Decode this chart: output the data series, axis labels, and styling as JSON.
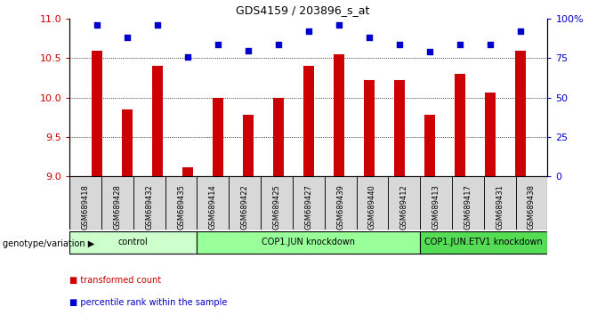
{
  "title": "GDS4159 / 203896_s_at",
  "samples": [
    "GSM689418",
    "GSM689428",
    "GSM689432",
    "GSM689435",
    "GSM689414",
    "GSM689422",
    "GSM689425",
    "GSM689427",
    "GSM689439",
    "GSM689440",
    "GSM689412",
    "GSM689413",
    "GSM689417",
    "GSM689431",
    "GSM689438"
  ],
  "bar_values": [
    10.6,
    9.85,
    10.4,
    9.12,
    10.0,
    9.78,
    10.0,
    10.4,
    10.55,
    10.22,
    10.22,
    9.78,
    10.3,
    10.06,
    10.6
  ],
  "dot_values": [
    96,
    88,
    96,
    76,
    84,
    80,
    84,
    92,
    96,
    88,
    84,
    79,
    84,
    84,
    92
  ],
  "bar_color": "#cc0000",
  "dot_color": "#0000cc",
  "ylim_left": [
    9.0,
    11.0
  ],
  "ylim_right": [
    0,
    100
  ],
  "yticks_left": [
    9.0,
    9.5,
    10.0,
    10.5,
    11.0
  ],
  "yticks_right": [
    0,
    25,
    50,
    75,
    100
  ],
  "groups": [
    {
      "label": "control",
      "start": 0,
      "end": 4,
      "color": "#ccffcc"
    },
    {
      "label": "COP1.JUN knockdown",
      "start": 4,
      "end": 11,
      "color": "#99ff99"
    },
    {
      "label": "COP1.JUN.ETV1 knockdown",
      "start": 11,
      "end": 15,
      "color": "#55dd55"
    }
  ],
  "legend_bar_label": "transformed count",
  "legend_dot_label": "percentile rank within the sample",
  "xlabel_group": "genotype/variation"
}
